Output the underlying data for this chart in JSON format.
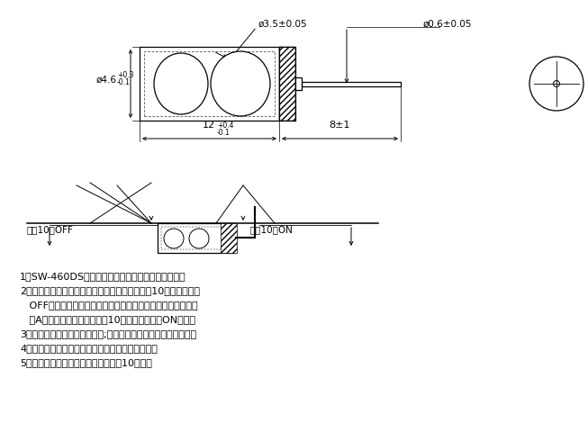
{
  "bg": "#ffffff",
  "lc": "#000000",
  "notes": [
    "1、SW-460DS为滚珠型倾斜感应单方向性触发开关。",
    "2、产品当向导电端（无脚端）倾斜、倾斜角大于10度时，为开路",
    "   OFF状态，当产品水平状态发生倾斜改变，触发端（镀金引脚",
    "   端A）低于水平倾斜角大于于10度角时，为闭路ON状态。",
    "3、水平放置时，晃动可易触发;而无脚端向下时，晃动不易触发。",
    "4、本规格产品为完全密封式封装，可防水、防尘。",
    "5、在正常使用状态下，开关寿命可达10万次。"
  ],
  "label_off": "向下10度OFF",
  "label_on": "向下10度ON",
  "dim_d46": "ø4.6",
  "dim_d46_tol1": "+0.3",
  "dim_d46_tol2": "-0.1",
  "dim_d35": "ø3.5±0.05",
  "dim_d06": "ø0.6±0.05",
  "dim_12": "12",
  "dim_12_tol1": "+0.4",
  "dim_12_tol2": "-0.1",
  "dim_8": "8±1"
}
